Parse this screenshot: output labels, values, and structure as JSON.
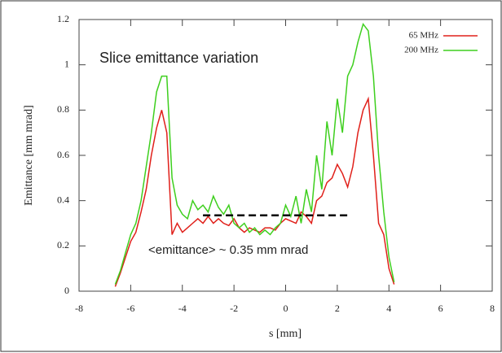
{
  "chart_data": {
    "type": "line",
    "title": "Slice emittance variation",
    "annotation": "<emittance> ~ 0.35 mm mrad",
    "x_label": "s [mm]",
    "y_label": "Emittance [mm mrad]",
    "x": [
      -6.6,
      -6.4,
      -6.2,
      -6.0,
      -5.8,
      -5.6,
      -5.4,
      -5.2,
      -5.0,
      -4.8,
      -4.6,
      -4.4,
      -4.2,
      -4.0,
      -3.8,
      -3.6,
      -3.4,
      -3.2,
      -3.0,
      -2.8,
      -2.6,
      -2.4,
      -2.2,
      -2.0,
      -1.8,
      -1.6,
      -1.4,
      -1.2,
      -1.0,
      -0.8,
      -0.6,
      -0.4,
      -0.2,
      0.0,
      0.2,
      0.4,
      0.6,
      0.8,
      1.0,
      1.2,
      1.4,
      1.6,
      1.8,
      2.0,
      2.2,
      2.4,
      2.6,
      2.8,
      3.0,
      3.2,
      3.4,
      3.6,
      3.8,
      4.0,
      4.2
    ],
    "series": [
      {
        "name": "65 MHz",
        "color": "#e0201a",
        "values": [
          0.02,
          0.08,
          0.15,
          0.22,
          0.26,
          0.35,
          0.45,
          0.6,
          0.72,
          0.8,
          0.7,
          0.25,
          0.3,
          0.26,
          0.28,
          0.3,
          0.32,
          0.3,
          0.33,
          0.3,
          0.32,
          0.3,
          0.29,
          0.32,
          0.28,
          0.26,
          0.28,
          0.27,
          0.26,
          0.28,
          0.28,
          0.27,
          0.3,
          0.32,
          0.31,
          0.3,
          0.35,
          0.33,
          0.3,
          0.4,
          0.42,
          0.48,
          0.5,
          0.56,
          0.52,
          0.46,
          0.55,
          0.7,
          0.8,
          0.85,
          0.6,
          0.3,
          0.25,
          0.1,
          0.03
        ]
      },
      {
        "name": "200 MHz",
        "color": "#3ecf1e",
        "values": [
          0.03,
          0.09,
          0.17,
          0.25,
          0.3,
          0.4,
          0.55,
          0.7,
          0.88,
          0.95,
          0.95,
          0.5,
          0.38,
          0.34,
          0.32,
          0.4,
          0.36,
          0.38,
          0.35,
          0.42,
          0.37,
          0.34,
          0.38,
          0.3,
          0.28,
          0.3,
          0.26,
          0.28,
          0.25,
          0.27,
          0.25,
          0.28,
          0.3,
          0.38,
          0.33,
          0.42,
          0.3,
          0.45,
          0.35,
          0.6,
          0.45,
          0.75,
          0.6,
          0.85,
          0.7,
          0.95,
          1.0,
          1.1,
          1.18,
          1.15,
          0.95,
          0.6,
          0.35,
          0.15,
          0.04
        ]
      }
    ],
    "reference_line": {
      "y": 0.335,
      "x": [
        -3.2,
        2.5
      ]
    },
    "xlim": [
      -8,
      8
    ],
    "xticks": [
      -8,
      -6,
      -4,
      -2,
      0,
      2,
      4,
      6,
      8
    ],
    "ylim": [
      0,
      1.2
    ],
    "yticks": [
      0,
      0.2,
      0.4,
      0.6,
      0.8,
      1,
      1.2
    ],
    "grid": false,
    "legend": "upper-right"
  }
}
